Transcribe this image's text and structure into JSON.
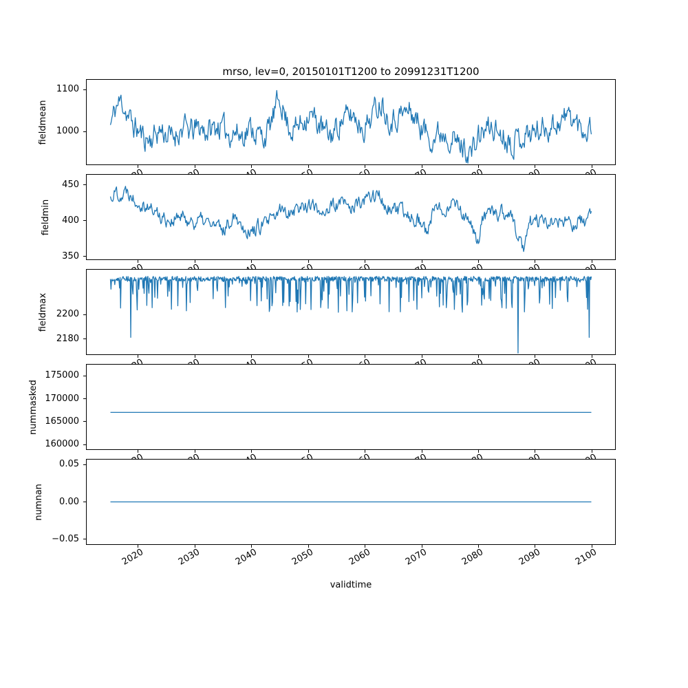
{
  "chart_data": {
    "type": "line",
    "title": "mrso, lev=0, 20150101T1200 to 20991231T1200",
    "xlabel": "validtime",
    "line_color": "#1f77b4",
    "xlim": [
      2010.8,
      2104.2
    ],
    "xticks": [
      2020,
      2030,
      2040,
      2050,
      2060,
      2070,
      2080,
      2090,
      2100
    ],
    "xtick_labels": [
      "2020",
      "2030",
      "2040",
      "2050",
      "2060",
      "2070",
      "2080",
      "2090",
      "2100"
    ],
    "grid": false,
    "legend": "none",
    "subplots": [
      {
        "ylabel": "fieldmean",
        "ylim": [
          920,
          1125
        ],
        "yticks": [
          1000,
          1100
        ],
        "ytick_labels": [
          "1000",
          "1100"
        ],
        "series": {
          "name": "fieldmean",
          "kind": "noisy",
          "x_start": 2015.0,
          "x_end": 2100.0,
          "n": 640,
          "seed": 11,
          "noise": 26,
          "anchors": [
            [
              2015,
              1015
            ],
            [
              2016,
              1060
            ],
            [
              2017,
              1075
            ],
            [
              2018,
              1040
            ],
            [
              2019,
              1015
            ],
            [
              2020,
              1000
            ],
            [
              2021,
              985
            ],
            [
              2022,
              980
            ],
            [
              2023,
              995
            ],
            [
              2024,
              1005
            ],
            [
              2025,
              990
            ],
            [
              2026,
              985
            ],
            [
              2027,
              1000
            ],
            [
              2028,
              1010
            ],
            [
              2029,
              1000
            ],
            [
              2030,
              1005
            ],
            [
              2031,
              1010
            ],
            [
              2032,
              1000
            ],
            [
              2033,
              1005
            ],
            [
              2034,
              1015
            ],
            [
              2035,
              1005
            ],
            [
              2036,
              995
            ],
            [
              2037,
              1000
            ],
            [
              2038,
              990
            ],
            [
              2039,
              1000
            ],
            [
              2040,
              1010
            ],
            [
              2041,
              995
            ],
            [
              2042,
              985
            ],
            [
              2043,
              1005
            ],
            [
              2044,
              1045
            ],
            [
              2045,
              1085
            ],
            [
              2046,
              1030
            ],
            [
              2047,
              1005
            ],
            [
              2048,
              1010
            ],
            [
              2049,
              1025
            ],
            [
              2050,
              1045
            ],
            [
              2051,
              1030
            ],
            [
              2052,
              1015
            ],
            [
              2053,
              995
            ],
            [
              2054,
              990
            ],
            [
              2055,
              1010
            ],
            [
              2056,
              1030
            ],
            [
              2057,
              1035
            ],
            [
              2058,
              1040
            ],
            [
              2059,
              1020
            ],
            [
              2060,
              1010
            ],
            [
              2061,
              1035
            ],
            [
              2062,
              1060
            ],
            [
              2063,
              1075
            ],
            [
              2064,
              1035
            ],
            [
              2065,
              1030
            ],
            [
              2066,
              1040
            ],
            [
              2067,
              1045
            ],
            [
              2068,
              1050
            ],
            [
              2069,
              1030
            ],
            [
              2070,
              1010
            ],
            [
              2071,
              995
            ],
            [
              2072,
              985
            ],
            [
              2073,
              995
            ],
            [
              2074,
              1000
            ],
            [
              2075,
              990
            ],
            [
              2076,
              975
            ],
            [
              2077,
              965
            ],
            [
              2078,
              955
            ],
            [
              2079,
              950
            ],
            [
              2080,
              985
            ],
            [
              2081,
              1000
            ],
            [
              2082,
              1010
            ],
            [
              2083,
              1005
            ],
            [
              2084,
              995
            ],
            [
              2085,
              985
            ],
            [
              2086,
              975
            ],
            [
              2087,
              985
            ],
            [
              2088,
              990
            ],
            [
              2089,
              995
            ],
            [
              2090,
              1000
            ],
            [
              2091,
              1005
            ],
            [
              2092,
              1010
            ],
            [
              2093,
              1015
            ],
            [
              2094,
              1020
            ],
            [
              2095,
              1030
            ],
            [
              2096,
              1040
            ],
            [
              2097,
              1025
            ],
            [
              2098,
              1010
            ],
            [
              2099,
              1005
            ],
            [
              2100,
              1015
            ]
          ]
        }
      },
      {
        "ylabel": "fieldmin",
        "ylim": [
          345,
          465
        ],
        "yticks": [
          350,
          400,
          450
        ],
        "ytick_labels": [
          "350",
          "400",
          "450"
        ],
        "series": {
          "name": "fieldmin",
          "kind": "noisy",
          "x_start": 2015.0,
          "x_end": 2100.0,
          "n": 640,
          "seed": 22,
          "noise": 9,
          "anchors": [
            [
              2015,
              432
            ],
            [
              2016,
              442
            ],
            [
              2017,
              436
            ],
            [
              2018,
              444
            ],
            [
              2019,
              434
            ],
            [
              2020,
              428
            ],
            [
              2021,
              424
            ],
            [
              2022,
              418
            ],
            [
              2023,
              412
            ],
            [
              2024,
              406
            ],
            [
              2025,
              402
            ],
            [
              2026,
              400
            ],
            [
              2027,
              404
            ],
            [
              2028,
              404
            ],
            [
              2029,
              400
            ],
            [
              2030,
              398
            ],
            [
              2031,
              400
            ],
            [
              2032,
              398
            ],
            [
              2033,
              394
            ],
            [
              2034,
              390
            ],
            [
              2035,
              386
            ],
            [
              2036,
              398
            ],
            [
              2037,
              412
            ],
            [
              2038,
              396
            ],
            [
              2039,
              388
            ],
            [
              2040,
              384
            ],
            [
              2041,
              390
            ],
            [
              2042,
              394
            ],
            [
              2043,
              398
            ],
            [
              2044,
              402
            ],
            [
              2045,
              416
            ],
            [
              2046,
              412
            ],
            [
              2047,
              416
            ],
            [
              2048,
              418
            ],
            [
              2049,
              420
            ],
            [
              2050,
              424
            ],
            [
              2051,
              418
            ],
            [
              2052,
              414
            ],
            [
              2053,
              416
            ],
            [
              2054,
              418
            ],
            [
              2055,
              422
            ],
            [
              2056,
              424
            ],
            [
              2057,
              420
            ],
            [
              2058,
              418
            ],
            [
              2059,
              424
            ],
            [
              2060,
              428
            ],
            [
              2061,
              432
            ],
            [
              2062,
              440
            ],
            [
              2063,
              428
            ],
            [
              2064,
              418
            ],
            [
              2065,
              414
            ],
            [
              2066,
              412
            ],
            [
              2067,
              410
            ],
            [
              2068,
              408
            ],
            [
              2069,
              404
            ],
            [
              2070,
              398
            ],
            [
              2071,
              380
            ],
            [
              2072,
              412
            ],
            [
              2073,
              416
            ],
            [
              2074,
              418
            ],
            [
              2075,
              424
            ],
            [
              2076,
              428
            ],
            [
              2077,
              414
            ],
            [
              2078,
              400
            ],
            [
              2079,
              386
            ],
            [
              2080,
              372
            ],
            [
              2081,
              406
            ],
            [
              2082,
              408
            ],
            [
              2083,
              410
            ],
            [
              2084,
              412
            ],
            [
              2085,
              410
            ],
            [
              2086,
              408
            ],
            [
              2087,
              372
            ],
            [
              2088,
              362
            ],
            [
              2089,
              398
            ],
            [
              2090,
              400
            ],
            [
              2091,
              398
            ],
            [
              2092,
              396
            ],
            [
              2093,
              398
            ],
            [
              2094,
              400
            ],
            [
              2095,
              397
            ],
            [
              2096,
              394
            ],
            [
              2097,
              397
            ],
            [
              2098,
              400
            ],
            [
              2099,
              394
            ],
            [
              2100,
              418
            ]
          ]
        }
      },
      {
        "ylabel": "fieldmax",
        "ylim": [
          2167,
          2237
        ],
        "yticks": [
          2180,
          2200
        ],
        "ytick_labels": [
          "2180",
          "2200"
        ],
        "series": {
          "name": "fieldmax",
          "kind": "spiky",
          "x_start": 2015.0,
          "x_end": 2100.0,
          "n": 900,
          "seed": 33,
          "base": 2231.5,
          "jitter": 4,
          "spike_prob": 0.2,
          "spike_depth": 26,
          "deep_spikes": [
            [
              2018.6,
              2181
            ],
            [
              2033.2,
              2213
            ],
            [
              2045.6,
              2210
            ],
            [
              2052.4,
              2212
            ],
            [
              2060.1,
              2211
            ],
            [
              2066.4,
              2214
            ],
            [
              2076.2,
              2216
            ],
            [
              2087.0,
              2168
            ],
            [
              2094.5,
              2220
            ],
            [
              2099.6,
              2181
            ]
          ]
        }
      },
      {
        "ylabel": "nummasked",
        "ylim": [
          158800,
          177600
        ],
        "yticks": [
          160000,
          165000,
          170000,
          175000
        ],
        "ytick_labels": [
          "160000",
          "165000",
          "170000",
          "175000"
        ],
        "series": {
          "name": "nummasked",
          "kind": "constant",
          "x_start": 2015.0,
          "x_end": 2100.0,
          "value": 167000
        }
      },
      {
        "ylabel": "numnan",
        "ylim": [
          -0.0575,
          0.0575
        ],
        "yticks": [
          -0.05,
          0,
          0.05
        ],
        "ytick_labels": [
          "−0.05",
          "0.00",
          "0.05"
        ],
        "series": {
          "name": "numnan",
          "kind": "constant",
          "x_start": 2015.0,
          "x_end": 2100.0,
          "value": 0
        }
      }
    ]
  }
}
